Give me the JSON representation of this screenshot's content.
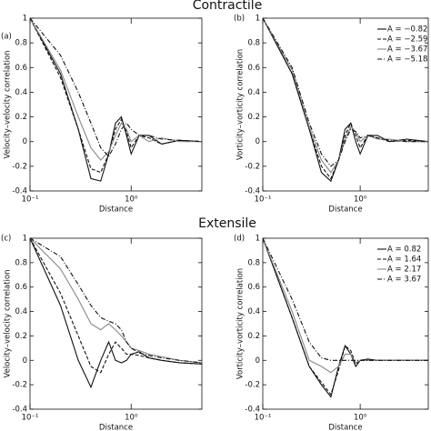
{
  "headings": [
    "Contractile",
    "Extensile"
  ],
  "chart_data": [
    {
      "type": "line",
      "panel_label": "(a)",
      "xlabel": "Distance",
      "ylabel": "Velocity–velocity correlation",
      "log_x": true,
      "x": [
        0.1,
        0.2,
        0.3,
        0.4,
        0.5,
        0.6,
        0.7,
        0.8,
        0.9,
        1.0,
        1.2,
        1.5,
        2,
        3,
        5
      ],
      "xlim": [
        0.1,
        5
      ],
      "xticks": [
        {
          "value": 0.1,
          "label": "10⁻¹"
        },
        {
          "value": 1,
          "label": "10⁰"
        }
      ],
      "ylim": [
        -0.4,
        1
      ],
      "yticks": [
        1,
        0.8,
        0.6,
        0.4,
        0.2,
        0,
        -0.2,
        -0.4
      ],
      "series": [
        {
          "color": "#111111",
          "style": "solid",
          "values": [
            1,
            0.55,
            0.1,
            -0.3,
            -0.32,
            -0.1,
            0.15,
            0.2,
            0.05,
            -0.1,
            0.05,
            0.05,
            -0.02,
            0.01,
            0
          ]
        },
        {
          "color": "#111111",
          "style": "dashed",
          "values": [
            1,
            0.52,
            0.1,
            -0.22,
            -0.25,
            -0.1,
            0.1,
            0.18,
            0.08,
            -0.05,
            0.05,
            0.03,
            -0.02,
            0.01,
            0
          ]
        },
        {
          "color": "#888888",
          "style": "solid",
          "values": [
            1,
            0.58,
            0.2,
            -0.05,
            -0.15,
            -0.08,
            0.05,
            0.15,
            0.1,
            0,
            0.05,
            0,
            0.03,
            0,
            0
          ]
        },
        {
          "color": "#111111",
          "style": "dashdot",
          "values": [
            1,
            0.7,
            0.4,
            0.15,
            -0.05,
            -0.12,
            -0.02,
            0.1,
            0.15,
            0.1,
            0.05,
            0.05,
            0.02,
            0.01,
            0
          ]
        }
      ]
    },
    {
      "type": "line",
      "panel_label": "(b)",
      "xlabel": "Distance",
      "ylabel": "Vorticity–vorticity correlation",
      "log_x": true,
      "legend": "upper right",
      "x": [
        0.1,
        0.2,
        0.3,
        0.4,
        0.5,
        0.6,
        0.7,
        0.8,
        0.9,
        1.0,
        1.2,
        1.5,
        2,
        3,
        5
      ],
      "xlim": [
        0.1,
        5
      ],
      "xticks": [
        {
          "value": 0.1,
          "label": "10⁻¹"
        },
        {
          "value": 1,
          "label": "10⁰"
        }
      ],
      "ylim": [
        -0.4,
        1
      ],
      "yticks": [
        1,
        0.8,
        0.6,
        0.4,
        0.2,
        0,
        -0.2,
        -0.4
      ],
      "series": [
        {
          "name": "A = −0.82",
          "color": "#111111",
          "style": "solid",
          "values": [
            1,
            0.55,
            0.1,
            -0.25,
            -0.32,
            -0.15,
            0.1,
            0.15,
            0,
            -0.1,
            0.05,
            0.05,
            0,
            0.02,
            0
          ]
        },
        {
          "name": "A = −2.59",
          "color": "#111111",
          "style": "dashed",
          "values": [
            1,
            0.55,
            0.1,
            -0.2,
            -0.3,
            -0.15,
            0.05,
            0.15,
            0.05,
            -0.05,
            0.05,
            0.03,
            0,
            0.01,
            0
          ]
        },
        {
          "name": "A = −3.67",
          "color": "#888888",
          "style": "solid",
          "values": [
            1,
            0.58,
            0.12,
            -0.15,
            -0.25,
            -0.15,
            0.02,
            0.12,
            0.08,
            0,
            0.05,
            0.02,
            0.02,
            0,
            0
          ]
        },
        {
          "name": "A = −5.18",
          "color": "#111111",
          "style": "dashdot",
          "values": [
            1,
            0.6,
            0.15,
            -0.1,
            -0.2,
            -0.15,
            0,
            0.1,
            0.08,
            0.03,
            0.05,
            0.03,
            0.01,
            0,
            0
          ]
        }
      ]
    },
    {
      "type": "line",
      "panel_label": "(c)",
      "xlabel": "Distance",
      "ylabel": "Velocity–velocity correlation",
      "log_x": true,
      "x": [
        0.1,
        0.2,
        0.3,
        0.4,
        0.5,
        0.6,
        0.7,
        0.8,
        0.9,
        1.0,
        1.2,
        1.5,
        2,
        3,
        5
      ],
      "xlim": [
        0.1,
        5
      ],
      "xticks": [
        {
          "value": 0.1,
          "label": "10⁻¹"
        },
        {
          "value": 1,
          "label": "10⁰"
        }
      ],
      "ylim": [
        -0.4,
        1
      ],
      "yticks": [
        1,
        0.8,
        0.6,
        0.4,
        0.2,
        0,
        -0.2,
        -0.4
      ],
      "series": [
        {
          "color": "#111111",
          "style": "solid",
          "values": [
            1,
            0.45,
            0,
            -0.22,
            0,
            0.15,
            0,
            -0.02,
            0,
            0.05,
            0.07,
            0.02,
            0,
            -0.02,
            -0.03
          ]
        },
        {
          "color": "#111111",
          "style": "dashed",
          "values": [
            1,
            0.55,
            0.2,
            -0.05,
            -0.1,
            0.05,
            0.15,
            0.1,
            0.05,
            0.05,
            0.04,
            0.02,
            0,
            -0.02,
            -0.03
          ]
        },
        {
          "color": "#888888",
          "style": "solid",
          "values": [
            1,
            0.75,
            0.5,
            0.3,
            0.25,
            0.3,
            0.25,
            0.2,
            0.15,
            0.1,
            0.08,
            0.05,
            0.03,
            0,
            -0.02
          ]
        },
        {
          "color": "#111111",
          "style": "dashdot",
          "values": [
            1,
            0.85,
            0.62,
            0.45,
            0.35,
            0.32,
            0.3,
            0.25,
            0.15,
            0.1,
            0.06,
            0.04,
            0.02,
            0,
            -0.02
          ]
        }
      ]
    },
    {
      "type": "line",
      "panel_label": "(d)",
      "xlabel": "Distance",
      "ylabel": "Vorticity–vorticity correlation",
      "log_x": true,
      "legend": "upper right",
      "x": [
        0.1,
        0.2,
        0.3,
        0.4,
        0.5,
        0.6,
        0.7,
        0.8,
        0.9,
        1.0,
        1.2,
        1.5,
        2,
        3,
        5
      ],
      "xlim": [
        0.1,
        5
      ],
      "xticks": [
        {
          "value": 0.1,
          "label": "10⁻¹"
        },
        {
          "value": 1,
          "label": "10⁰"
        }
      ],
      "ylim": [
        -0.4,
        1
      ],
      "yticks": [
        1,
        0.8,
        0.6,
        0.4,
        0.2,
        0,
        -0.2,
        -0.4
      ],
      "series": [
        {
          "name": "A = 0.82",
          "color": "#111111",
          "style": "solid",
          "values": [
            1,
            0.35,
            -0.05,
            -0.2,
            -0.3,
            -0.05,
            0.12,
            0.05,
            -0.05,
            0,
            0.01,
            0,
            0,
            0,
            0
          ]
        },
        {
          "name": "A = 1.64",
          "color": "#111111",
          "style": "dashed",
          "values": [
            1,
            0.35,
            -0.05,
            -0.18,
            -0.28,
            -0.08,
            0.12,
            0.08,
            -0.03,
            0,
            0.01,
            0,
            0,
            0,
            0
          ]
        },
        {
          "name": "A = 2.17",
          "color": "#888888",
          "style": "solid",
          "values": [
            1,
            0.4,
            0,
            -0.05,
            -0.1,
            -0.05,
            0.05,
            0.05,
            -0.02,
            0,
            0,
            0,
            0,
            0,
            0
          ]
        },
        {
          "name": "A = 3.67",
          "color": "#111111",
          "style": "dashdot",
          "values": [
            1,
            0.5,
            0.15,
            0.02,
            0,
            0,
            0,
            0,
            0,
            0,
            0,
            0,
            0,
            0,
            0
          ]
        }
      ]
    }
  ]
}
